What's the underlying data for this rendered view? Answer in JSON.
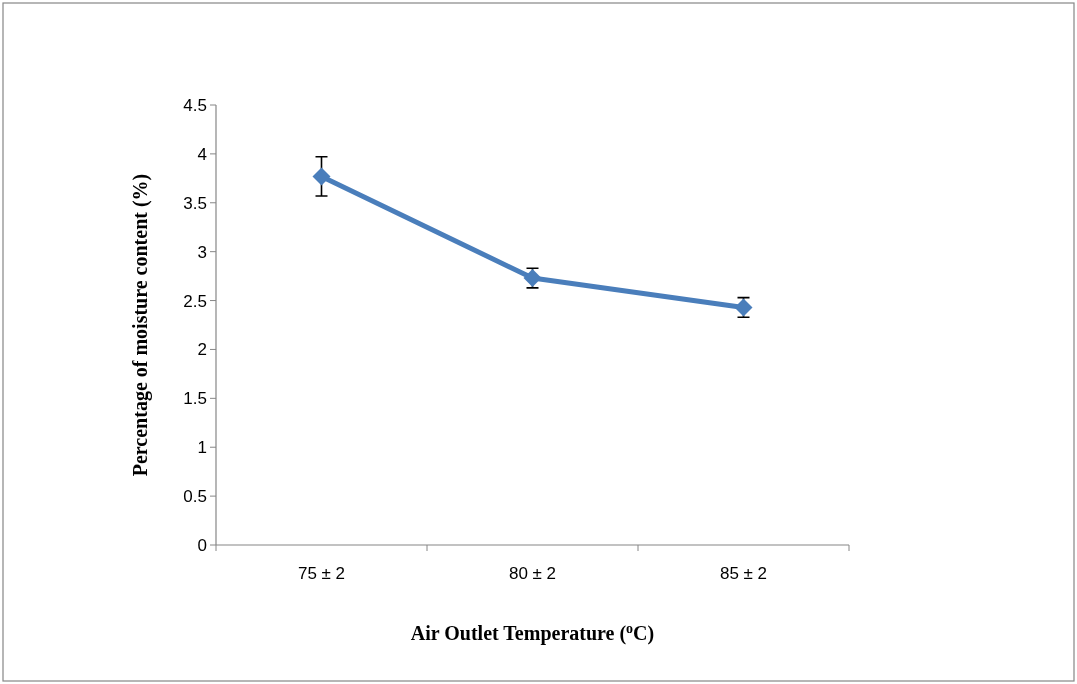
{
  "chart_data": {
    "type": "line",
    "xlabel": "Air Outlet Temperature ($^{o}$C)",
    "ylabel": "Percentage of moisture content (%)",
    "categories": [
      "75 ± 2",
      "80 ± 2",
      "85 ± 2"
    ],
    "series": [
      {
        "color": "#4a7ebb",
        "values": [
          3.77,
          2.73,
          2.43
        ],
        "errors": [
          0.2,
          0.1,
          0.1
        ]
      }
    ],
    "ylim": [
      0,
      4.5
    ],
    "yticks": [
      0,
      {
        "value": 0.5,
        "label": "0.5"
      },
      1,
      {
        "value": 1.5,
        "label": "1.5"
      },
      2,
      {
        "value": 2.5,
        "label": "2.5"
      },
      3,
      {
        "value": 3.5,
        "label": "3.5"
      },
      4,
      {
        "value": 4.5,
        "label": "4.5"
      }
    ],
    "marker": "diamond",
    "line_style": "solid"
  }
}
